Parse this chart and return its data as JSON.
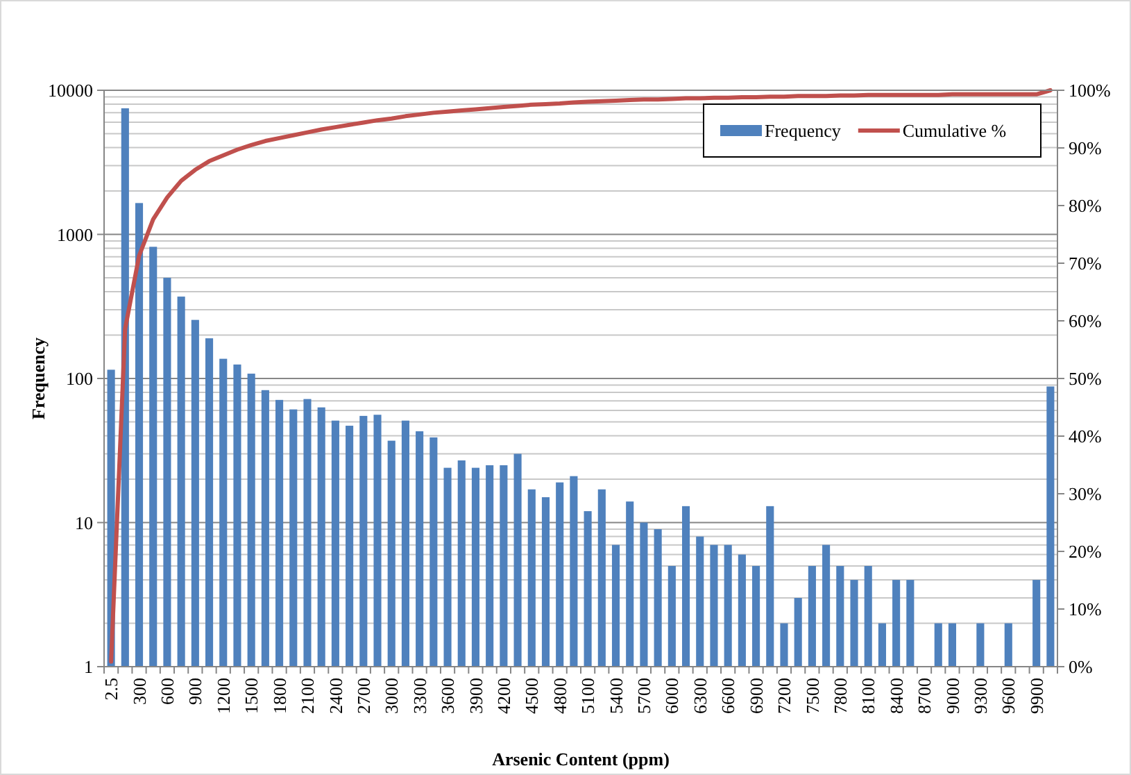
{
  "chart_data": {
    "type": "bar",
    "xlabel": "Arsenic Content (ppm)",
    "ylabel": "Frequency",
    "categories": [
      "2.5",
      null,
      "300",
      null,
      "600",
      null,
      "900",
      null,
      "1200",
      null,
      "1500",
      null,
      "1800",
      null,
      "2100",
      null,
      "2400",
      null,
      "2700",
      null,
      "3000",
      null,
      "3300",
      null,
      "3600",
      null,
      "3900",
      null,
      "4200",
      null,
      "4500",
      null,
      "4800",
      null,
      "5100",
      null,
      "5400",
      null,
      "5700",
      null,
      "6000",
      null,
      "6300",
      null,
      "6600",
      null,
      "6900",
      null,
      "7200",
      null,
      "7500",
      null,
      "7800",
      null,
      "8100",
      null,
      "8400",
      null,
      "8700",
      null,
      "9000",
      null,
      "9300",
      null,
      "9600",
      null,
      "9900",
      null
    ],
    "series": [
      {
        "name": "Frequency",
        "color": "#4f81bd",
        "values": [
          115,
          7500,
          1650,
          820,
          500,
          370,
          255,
          190,
          137,
          125,
          108,
          83,
          71,
          61,
          72,
          63,
          51,
          47,
          55,
          56,
          37,
          51,
          43,
          39,
          24,
          27,
          24,
          25,
          25,
          30,
          17,
          15,
          19,
          21,
          12,
          17,
          7,
          14,
          10,
          9,
          5,
          13,
          8,
          7,
          7,
          6,
          5,
          13,
          2,
          3,
          5,
          7,
          5,
          4,
          5,
          2,
          4,
          4,
          null,
          2,
          2,
          null,
          2,
          null,
          2,
          null,
          4,
          88
        ]
      },
      {
        "name": "Cumulative %",
        "type": "line",
        "axis": "y2",
        "color": "#c0504d",
        "values": [
          0.9,
          58.6,
          71.3,
          77.6,
          81.4,
          84.3,
          86.2,
          87.7,
          88.7,
          89.7,
          90.5,
          91.2,
          91.7,
          92.2,
          92.7,
          93.2,
          93.6,
          94.0,
          94.4,
          94.8,
          95.1,
          95.5,
          95.8,
          96.1,
          96.3,
          96.5,
          96.7,
          96.9,
          97.1,
          97.3,
          97.5,
          97.6,
          97.7,
          97.9,
          98.0,
          98.1,
          98.2,
          98.3,
          98.4,
          98.4,
          98.5,
          98.6,
          98.6,
          98.7,
          98.7,
          98.8,
          98.8,
          98.9,
          98.9,
          99.0,
          99.0,
          99.0,
          99.1,
          99.1,
          99.2,
          99.2,
          99.2,
          99.2,
          99.2,
          99.2,
          99.3,
          99.3,
          99.3,
          99.3,
          99.3,
          99.3,
          99.3,
          100
        ]
      }
    ],
    "log": "y",
    "ylim": [
      1,
      10000
    ],
    "yticks": [
      1,
      10,
      100,
      1000,
      10000
    ],
    "y2lim": [
      0,
      100
    ],
    "y2ticks": [
      {
        "value": 0,
        "label": "0%"
      },
      {
        "value": 10,
        "label": "10%"
      },
      {
        "value": 20,
        "label": "20%"
      },
      {
        "value": 30,
        "label": "30%"
      },
      {
        "value": 40,
        "label": "40%"
      },
      {
        "value": 50,
        "label": "50%"
      },
      {
        "value": 60,
        "label": "60%"
      },
      {
        "value": 70,
        "label": "70%"
      },
      {
        "value": 80,
        "label": "80%"
      },
      {
        "value": 90,
        "label": "90%"
      },
      {
        "value": 100,
        "label": "100%"
      }
    ],
    "grid": "y",
    "legend": "top right"
  }
}
